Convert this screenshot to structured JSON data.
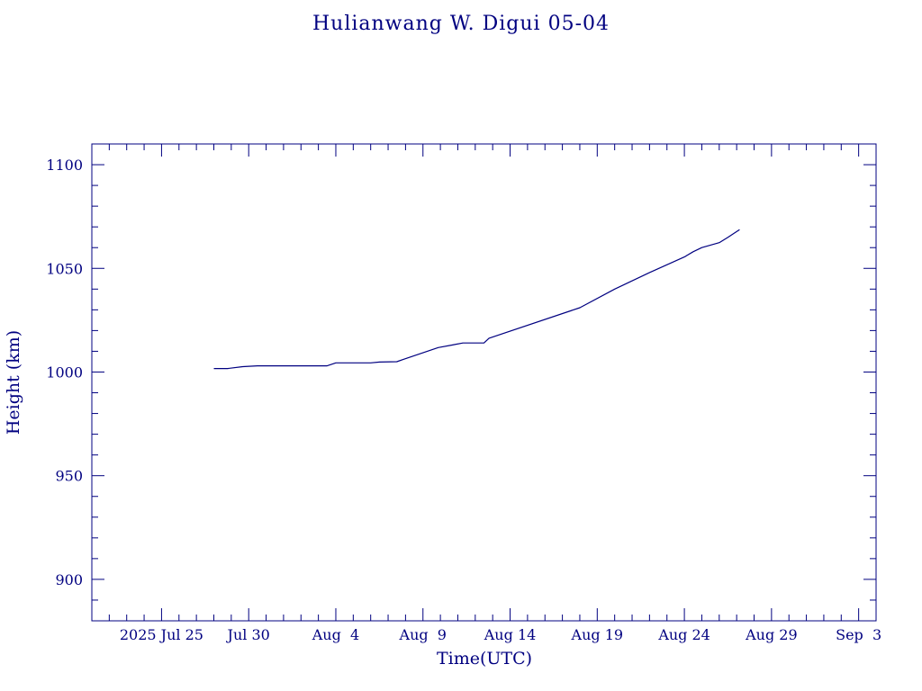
{
  "chart_data": {
    "type": "line",
    "title": "Hulianwang W. Digui 05-04",
    "xlabel": "Time(UTC)",
    "ylabel": "Height (km)",
    "xlim": [
      "2025-07-21",
      "2025-09-04"
    ],
    "ylim": [
      880,
      1110
    ],
    "x_ticks": [
      {
        "date": "2025-07-25",
        "label": "2025 Jul 25"
      },
      {
        "date": "2025-07-30",
        "label": "Jul 30"
      },
      {
        "date": "2025-08-04",
        "label": "Aug  4"
      },
      {
        "date": "2025-08-09",
        "label": "Aug  9"
      },
      {
        "date": "2025-08-14",
        "label": "Aug 14"
      },
      {
        "date": "2025-08-19",
        "label": "Aug 19"
      },
      {
        "date": "2025-08-24",
        "label": "Aug 24"
      },
      {
        "date": "2025-08-29",
        "label": "Aug 29"
      },
      {
        "date": "2025-09-03",
        "label": "Sep  3"
      }
    ],
    "y_ticks": [
      900,
      950,
      1000,
      1050,
      1100
    ],
    "grid": false,
    "series": [
      {
        "color": "#000080",
        "x": [
          "2025-07-28 00:00",
          "2025-07-28 19:00",
          "2025-07-29 16:00",
          "2025-07-30 12:00",
          "2025-08-03 12:00",
          "2025-08-04 00:00",
          "2025-08-06 00:00",
          "2025-08-06 12:00",
          "2025-08-07 12:00",
          "2025-08-07 21:00",
          "2025-08-09 21:00",
          "2025-08-10 16:00",
          "2025-08-11 07:00",
          "2025-08-12 12:00",
          "2025-08-12 19:00",
          "2025-08-18 00:00",
          "2025-08-20 00:00",
          "2025-08-22 00:00",
          "2025-08-24 00:00",
          "2025-08-24 12:00",
          "2025-08-25 00:00",
          "2025-08-26 00:00",
          "2025-08-26 12:00",
          "2025-08-26 20:00",
          "2025-08-27 04:00"
        ],
        "y": [
          1001.7,
          1001.7,
          1002.6,
          1003,
          1003,
          1004.4,
          1004.4,
          1004.8,
          1005,
          1006.1,
          1011.8,
          1013,
          1014,
          1014,
          1016.3,
          1031,
          1040,
          1048,
          1055.5,
          1058,
          1060,
          1062.4,
          1065,
          1066.8,
          1068.7
        ]
      }
    ]
  }
}
